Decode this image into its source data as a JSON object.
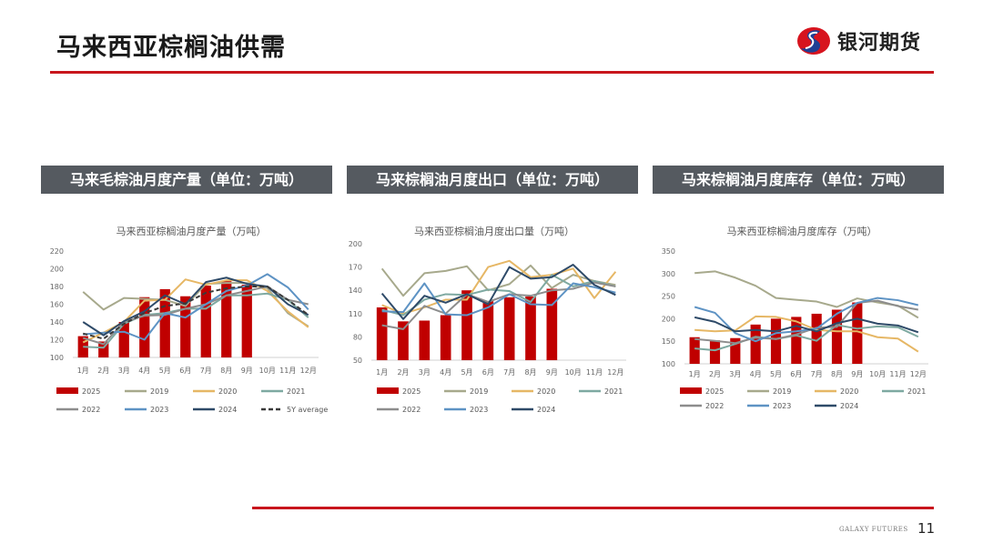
{
  "header": {
    "title": "马来西亚棕榈油供需",
    "brand": "银河期货"
  },
  "sections": [
    {
      "label": "马来毛棕油月度产量（单位：万吨）"
    },
    {
      "label": "马来棕榈油月度出口（单位：万吨）"
    },
    {
      "label": "马来棕榈油月度库存（单位：万吨）"
    }
  ],
  "footer": {
    "brand": "GALAXY FUTURES",
    "page": "11"
  },
  "colors": {
    "2025": "#c00000",
    "2019": "#a7a98c",
    "2020": "#e6b765",
    "2021": "#7ea9a1",
    "2022": "#8d8d8d",
    "2023": "#5e93c4",
    "2024": "#2e4a68",
    "5Y average": "#3a3a3a",
    "accent": "#c8161d"
  },
  "chart_data": [
    {
      "type": "bar+line",
      "title": "马来西亚棕榈油月度产量（万吨）",
      "ylim": [
        100,
        220
      ],
      "yticks": [
        100,
        120,
        140,
        160,
        180,
        200,
        220
      ],
      "categories": [
        "1月",
        "2月",
        "3月",
        "4月",
        "5月",
        "6月",
        "7月",
        "8月",
        "9月",
        "10月",
        "11月",
        "12月"
      ],
      "bar": {
        "name": "2025",
        "values": [
          124,
          118,
          140,
          168,
          177,
          169,
          181,
          186,
          182
        ]
      },
      "series": [
        {
          "name": "2019",
          "values": [
            174,
            154,
            167,
            166,
            165,
            158,
            183,
            184,
            184,
            178,
            150,
            135
          ]
        },
        {
          "name": "2020",
          "values": [
            117,
            128,
            140,
            164,
            165,
            188,
            182,
            187,
            187,
            175,
            152,
            134
          ]
        },
        {
          "name": "2021",
          "values": [
            112,
            111,
            138,
            148,
            150,
            155,
            155,
            170,
            170,
            172,
            165,
            145
          ]
        },
        {
          "name": "2022",
          "values": [
            122,
            115,
            140,
            147,
            148,
            155,
            160,
            170,
            175,
            180,
            165,
            160
          ]
        },
        {
          "name": "2023",
          "values": [
            126,
            128,
            129,
            120,
            150,
            145,
            160,
            175,
            181,
            194,
            179,
            154
          ]
        },
        {
          "name": "2024",
          "values": [
            140,
            125,
            141,
            152,
            170,
            160,
            185,
            190,
            183,
            180,
            160,
            148
          ]
        },
        {
          "name": "5Y average",
          "dashed": true,
          "values": [
            127,
            121,
            138,
            150,
            158,
            161,
            173,
            178,
            180,
            180,
            165,
            148
          ]
        }
      ]
    },
    {
      "type": "bar+line",
      "title": "马来西亚棕榈油月度出口量（万吨）",
      "ylim": [
        50,
        200
      ],
      "yticks": [
        50,
        80,
        110,
        140,
        170,
        200
      ],
      "categories": [
        "1月",
        "2月",
        "3月",
        "4月",
        "5月",
        "6月",
        "7月",
        "8月",
        "9月",
        "10月",
        "11月",
        "12月"
      ],
      "bar": {
        "name": "2025",
        "values": [
          118,
          100,
          101,
          108,
          140,
          126,
          131,
          132,
          142
        ]
      },
      "series": [
        {
          "name": "2019",
          "values": [
            168,
            133,
            162,
            165,
            171,
            140,
            148,
            172,
            143,
            160,
            152,
            147
          ]
        },
        {
          "name": "2020",
          "values": [
            121,
            110,
            118,
            128,
            128,
            170,
            178,
            157,
            160,
            168,
            130,
            164
          ]
        },
        {
          "name": "2021",
          "values": [
            115,
            108,
            128,
            135,
            134,
            141,
            139,
            125,
            160,
            145,
            152,
            145
          ]
        },
        {
          "name": "2022",
          "values": [
            95,
            90,
            120,
            110,
            135,
            125,
            135,
            133,
            140,
            142,
            150,
            145
          ]
        },
        {
          "name": "2023",
          "values": [
            113,
            112,
            149,
            109,
            108,
            118,
            135,
            122,
            121,
            149,
            144,
            137
          ]
        },
        {
          "name": "2024",
          "values": [
            136,
            103,
            133,
            124,
            135,
            122,
            170,
            155,
            157,
            173,
            147,
            134
          ]
        }
      ]
    },
    {
      "type": "bar+line",
      "title": "马来西亚棕榈油月度库存（万吨）",
      "ylim": [
        100,
        350
      ],
      "yticks": [
        100,
        150,
        200,
        250,
        300,
        350
      ],
      "categories": [
        "1月",
        "2月",
        "3月",
        "4月",
        "5月",
        "6月",
        "7月",
        "8月",
        "9月",
        "10月",
        "11月",
        "12月"
      ],
      "bar": {
        "name": "2025",
        "values": [
          159,
          152,
          157,
          187,
          200,
          204,
          211,
          220,
          236
        ]
      },
      "series": [
        {
          "name": "2019",
          "values": [
            301,
            305,
            291,
            273,
            246,
            242,
            238,
            226,
            245,
            236,
            229,
            202
          ]
        },
        {
          "name": "2020",
          "values": [
            175,
            172,
            174,
            205,
            204,
            194,
            175,
            172,
            172,
            159,
            156,
            127
          ]
        },
        {
          "name": "2021",
          "values": [
            134,
            130,
            144,
            160,
            155,
            163,
            151,
            186,
            178,
            183,
            181,
            160
          ]
        },
        {
          "name": "2022",
          "values": [
            155,
            151,
            146,
            158,
            155,
            165,
            180,
            182,
            235,
            240,
            228,
            220
          ]
        },
        {
          "name": "2023",
          "values": [
            226,
            213,
            168,
            150,
            168,
            172,
            178,
            211,
            235,
            246,
            241,
            230
          ]
        },
        {
          "name": "2024",
          "values": [
            203,
            193,
            172,
            175,
            172,
            184,
            172,
            190,
            200,
            189,
            185,
            170
          ]
        }
      ]
    }
  ]
}
